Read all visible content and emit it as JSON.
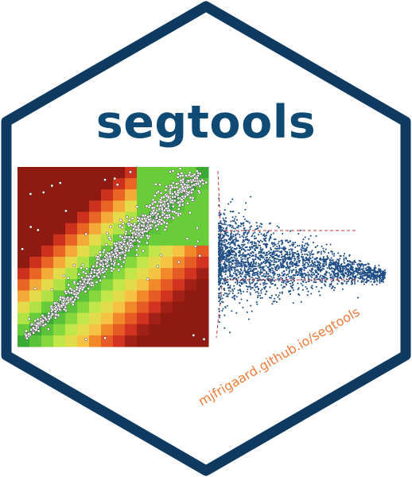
{
  "title": "segtools",
  "url": "mjfrigaard.github.io/segtools",
  "colors": {
    "border": "#0e3a62",
    "title": "#0e4a73",
    "url": "#f07b3a",
    "scatter_point": "#1f4e86",
    "reference_line": "#cc3333"
  },
  "heatmap": {
    "description_colors": [
      "#8e1a12",
      "#d93621",
      "#f07a24",
      "#f6d24a",
      "#c9e84a",
      "#6ed13b",
      "#3aaa35"
    ]
  }
}
